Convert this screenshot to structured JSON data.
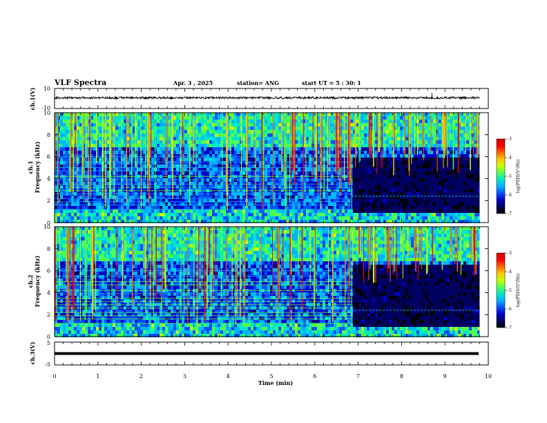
{
  "header": {
    "title": "VLF Spectra",
    "date": "Apr. 3 , 2025",
    "station": "station= ANG",
    "start": "start UT = 5 : 30: 1"
  },
  "colormap": [
    "#000000",
    "#000060",
    "#0000c8",
    "#0050ff",
    "#00b4ff",
    "#00e6c8",
    "#50ff50",
    "#c8ff00",
    "#ffc800",
    "#ff6400",
    "#ff0000",
    "#d20000"
  ],
  "chart_data": [
    {
      "type": "line",
      "panel": "ch1-waveform",
      "ylabel": "ch.1(V)",
      "ylim": [
        -10,
        10
      ],
      "yticks": [
        "10",
        "-10"
      ],
      "xlim": [
        0,
        9.8
      ],
      "baseline": 0,
      "spike_at_min": 8.7
    },
    {
      "type": "heatmap",
      "panel": "ch1-spectrogram",
      "ylabel": "ch.1\nFrequency (kHz)",
      "ylabel_line1": "ch.1",
      "ylabel_line2": "Frequency (kHz)",
      "ylim": [
        0,
        10
      ],
      "yticks": [
        "0",
        "2",
        "4",
        "6",
        "8",
        "10"
      ],
      "xlim": [
        0,
        9.8
      ],
      "transition_min": 6.85,
      "dark_region_top_khz": 6.2,
      "seed": 11,
      "colorbar": {
        "label": "log(PSD)(V²/Hz)",
        "range": [
          -7,
          -3
        ],
        "ticks": [
          "-3",
          "-4",
          "-5",
          "-6",
          "-7"
        ]
      }
    },
    {
      "type": "heatmap",
      "panel": "ch2-spectrogram",
      "ylabel": "ch.2\nFrequency (kHz)",
      "ylabel_line1": "ch.2",
      "ylabel_line2": "Frequency (kHz)",
      "ylim": [
        0,
        10
      ],
      "yticks": [
        "0",
        "2",
        "4",
        "6",
        "8",
        "10"
      ],
      "xlim": [
        0,
        9.8
      ],
      "transition_min": 6.85,
      "dark_region_top_khz": 6.8,
      "seed": 29,
      "colorbar": {
        "label": "log(PSD)(V²/Hz)",
        "range": [
          -7,
          -3
        ],
        "ticks": [
          "-3",
          "-4",
          "-5",
          "-6",
          "-7"
        ]
      }
    },
    {
      "type": "line",
      "panel": "ch3-waveform",
      "ylabel": "ch.3(V)",
      "ylim": [
        -5,
        5
      ],
      "yticks": [
        "5",
        "0",
        "-5"
      ],
      "xlim": [
        0,
        9.8
      ],
      "baseline": -1.5
    }
  ],
  "xaxis": {
    "label": "Time (min)",
    "range": [
      0,
      10
    ],
    "ticks": [
      "0",
      "1",
      "2",
      "3",
      "4",
      "5",
      "6",
      "7",
      "8",
      "9",
      "10"
    ]
  }
}
